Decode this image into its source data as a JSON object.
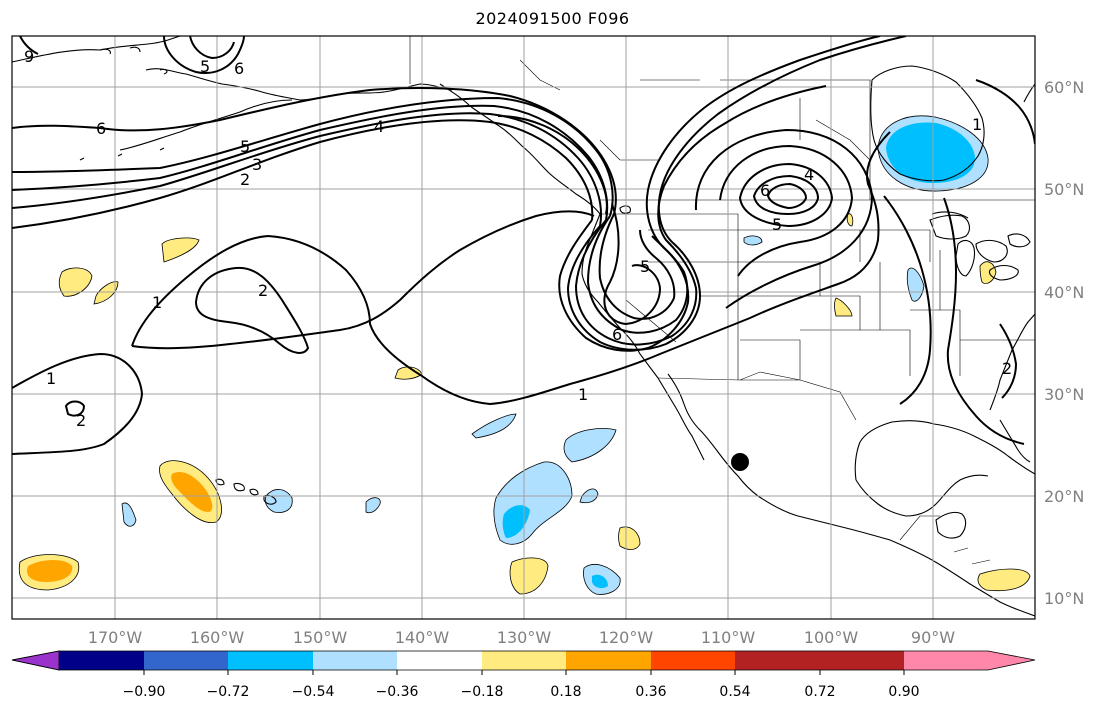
{
  "title": "2024091500 F096",
  "map": {
    "lat_labels": [
      "60°N",
      "50°N",
      "40°N",
      "30°N",
      "20°N",
      "10°N"
    ],
    "lon_labels": [
      "170°W",
      "160°W",
      "150°W",
      "140°W",
      "130°W",
      "120°W",
      "110°W",
      "100°W",
      "90°W"
    ],
    "contour_labels": [
      "9",
      "5",
      "6",
      "6",
      "5",
      "4",
      "3",
      "2",
      "2",
      "1",
      "5",
      "6",
      "6",
      "4",
      "5",
      "1",
      "1",
      "2",
      "1",
      "2"
    ],
    "colors": {
      "ocean": "#ffffff",
      "grid": "#a0a0a0",
      "coast": "#000000"
    }
  },
  "colorbar": {
    "colors": [
      "#9933cc",
      "#000088",
      "#3366cc",
      "#00bfff",
      "#b0e0ff",
      "#ffffff",
      "#ffeb80",
      "#ffa500",
      "#ff4500",
      "#b22222",
      "#ff88aa"
    ],
    "tick_labels": [
      "−0.90",
      "−0.72",
      "−0.54",
      "−0.36",
      "−0.18",
      "0.18",
      "0.36",
      "0.54",
      "0.72",
      "0.90"
    ]
  }
}
